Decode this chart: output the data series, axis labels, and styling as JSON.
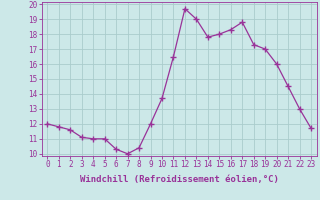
{
  "x": [
    0,
    1,
    2,
    3,
    4,
    5,
    6,
    7,
    8,
    9,
    10,
    11,
    12,
    13,
    14,
    15,
    16,
    17,
    18,
    19,
    20,
    21,
    22,
    23
  ],
  "y": [
    12.0,
    11.8,
    11.6,
    11.1,
    11.0,
    11.0,
    10.3,
    10.0,
    10.4,
    12.0,
    13.7,
    16.5,
    19.7,
    19.0,
    17.8,
    18.0,
    18.3,
    18.8,
    17.3,
    17.0,
    16.0,
    14.5,
    13.0,
    11.7
  ],
  "line_color": "#993399",
  "marker": "+",
  "marker_size": 4,
  "bg_color": "#cce8e8",
  "grid_color": "#aacccc",
  "xlabel": "Windchill (Refroidissement éolien,°C)",
  "ylim": [
    10,
    20
  ],
  "xlim": [
    -0.5,
    23.5
  ],
  "yticks": [
    10,
    11,
    12,
    13,
    14,
    15,
    16,
    17,
    18,
    19,
    20
  ],
  "xticks": [
    0,
    1,
    2,
    3,
    4,
    5,
    6,
    7,
    8,
    9,
    10,
    11,
    12,
    13,
    14,
    15,
    16,
    17,
    18,
    19,
    20,
    21,
    22,
    23
  ],
  "tick_label_fontsize": 5.5,
  "xlabel_fontsize": 6.5,
  "tick_color": "#993399",
  "spine_color": "#993399",
  "line_width": 0.9
}
